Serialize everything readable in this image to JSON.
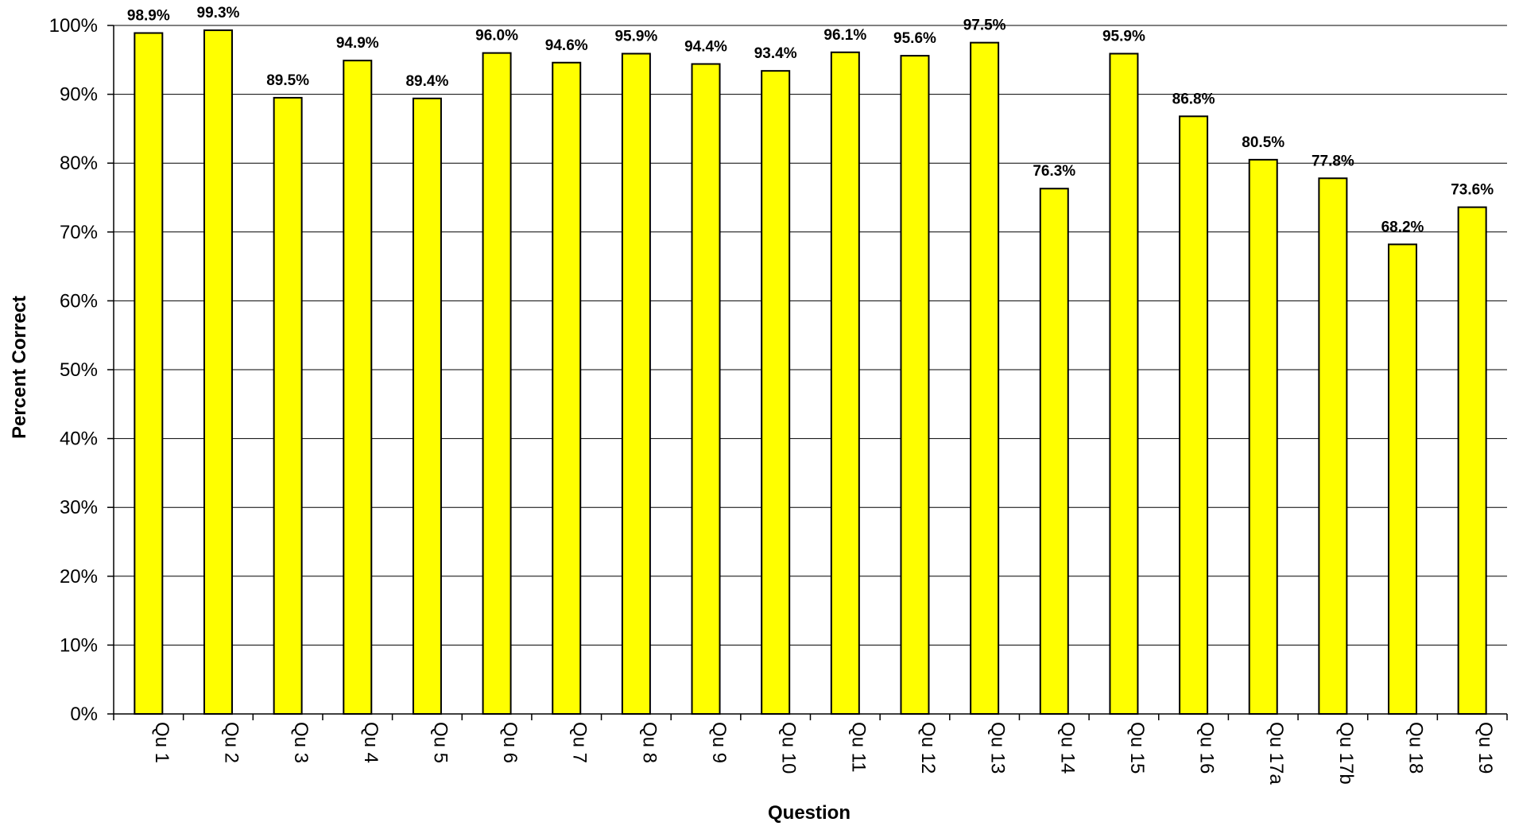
{
  "chart_data": {
    "type": "bar",
    "title": "",
    "xlabel": "Question",
    "ylabel": "Percent Correct",
    "ylim": [
      0,
      100
    ],
    "ytick_step": 10,
    "ytick_suffix": "%",
    "grid": true,
    "legend": "none",
    "bar_color": "#ffff00",
    "bar_stroke": "#000000",
    "categories": [
      "Qu 1",
      "Qu 2",
      "Qu 3",
      "Qu 4",
      "Qu 5",
      "Qu 6",
      "Qu 7",
      "Qu 8",
      "Qu 9",
      "Qu 10",
      "Qu 11",
      "Qu 12",
      "Qu 13",
      "Qu 14",
      "Qu 15",
      "Qu 16",
      "Qu 17a",
      "Qu 17b",
      "Qu 18",
      "Qu 19"
    ],
    "values": [
      98.9,
      99.3,
      89.5,
      94.9,
      89.4,
      96.0,
      94.6,
      95.9,
      94.4,
      93.4,
      96.1,
      95.6,
      97.5,
      76.3,
      95.9,
      86.8,
      80.5,
      77.8,
      68.2,
      73.6
    ],
    "data_labels": [
      "98.9%",
      "99.3%",
      "89.5%",
      "94.9%",
      "89.4%",
      "96.0%",
      "94.6%",
      "95.9%",
      "94.4%",
      "93.4%",
      "96.1%",
      "95.6%",
      "97.5%",
      "76.3%",
      "95.9%",
      "86.8%",
      "80.5%",
      "77.8%",
      "68.2%",
      "73.6%"
    ]
  }
}
